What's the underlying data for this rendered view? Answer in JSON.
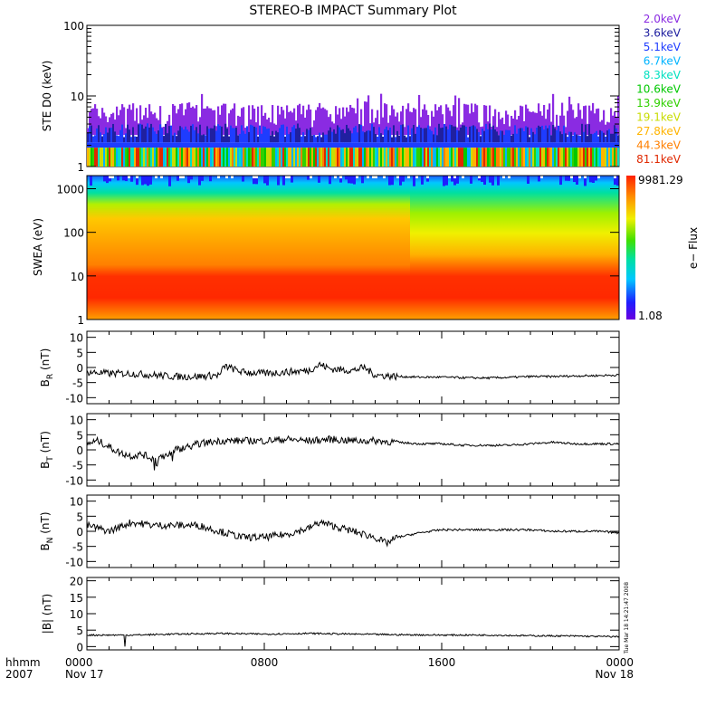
{
  "title": "STEREO-B IMPACT Summary Plot",
  "timestamp": "Tue Mar 18 14:21:47 2008",
  "x_axis": {
    "row1_label": "hhmm",
    "row2_label": "2007",
    "ticks": [
      {
        "t": 0,
        "top": "0000",
        "bottom": "Nov 17"
      },
      {
        "t": 8,
        "top": "0800",
        "bottom": ""
      },
      {
        "t": 16,
        "top": "1600",
        "bottom": ""
      },
      {
        "t": 24,
        "top": "0000",
        "bottom": "Nov 18"
      }
    ]
  },
  "chart_data": [
    {
      "id": "ste",
      "type": "bar",
      "ylabel": "STE D0 (keV)",
      "scale": "log",
      "ylim": [
        1,
        100
      ],
      "yticks": [
        1,
        10,
        100
      ],
      "x_range_hours": [
        0,
        24
      ],
      "channels": [
        {
          "name": "2.0keV",
          "color": "#8a2be2"
        },
        {
          "name": "3.6keV",
          "color": "#2020a0"
        },
        {
          "name": "5.1keV",
          "color": "#1e3cff"
        },
        {
          "name": "6.7keV",
          "color": "#00b4ff"
        },
        {
          "name": "8.3keV",
          "color": "#00e0c0"
        },
        {
          "name": "10.6keV",
          "color": "#00c800"
        },
        {
          "name": "13.9keV",
          "color": "#30d000"
        },
        {
          "name": "19.1keV",
          "color": "#c8dc00"
        },
        {
          "name": "27.8keV",
          "color": "#ffb400"
        },
        {
          "name": "44.3keV",
          "color": "#ff8000"
        },
        {
          "name": "81.1keV",
          "color": "#e02800"
        }
      ],
      "approx_levels_keV": {
        "2.0keV": 6,
        "3.6keV": 4,
        "5.1keV": 2.8,
        "6.7keV": 2.2,
        "8.3keV": 1.9,
        "10.6keV": 1.9,
        "13.9keV": 1.8,
        "19.1keV": 1.8,
        "27.8keV": 1.7,
        "44.3keV": 1.7,
        "81.1keV": 1.7
      }
    },
    {
      "id": "swea",
      "type": "heatmap",
      "ylabel": "SWEA (eV)",
      "scale": "log",
      "ylim": [
        1,
        2000
      ],
      "yticks": [
        1,
        10,
        100,
        1000
      ],
      "colorbar": {
        "label": "e− Flux",
        "max_label": "9981.29",
        "min_label": "1.08"
      },
      "x_range_hours": [
        0,
        24
      ]
    },
    {
      "id": "br",
      "type": "line",
      "ylabel_main": "B",
      "ylabel_sub": "R",
      "ylabel_unit": " (nT)",
      "ylim": [
        -12,
        12
      ],
      "yticks": [
        -10,
        -5,
        0,
        5,
        10
      ],
      "x_hours": [
        0,
        1,
        2,
        3,
        4,
        5,
        6,
        6.2,
        7,
        8,
        9,
        10,
        10.5,
        11,
        12,
        12.5,
        13,
        14,
        15,
        16,
        17,
        18,
        19,
        20,
        21,
        22,
        23,
        24
      ],
      "values": [
        -1.5,
        -2,
        -2,
        -2.5,
        -3,
        -3,
        -2.5,
        0.5,
        -1.5,
        -2,
        -1.5,
        -1,
        1,
        -0.5,
        -1,
        0,
        -2.5,
        -3,
        -3.2,
        -3.2,
        -3.4,
        -3.5,
        -3.3,
        -3,
        -3,
        -2.8,
        -2.7,
        -2.5
      ]
    },
    {
      "id": "bt",
      "type": "line",
      "ylabel_main": "B",
      "ylabel_sub": "T",
      "ylabel_unit": " (nT)",
      "ylim": [
        -12,
        12
      ],
      "yticks": [
        -10,
        -5,
        0,
        5,
        10
      ],
      "x_hours": [
        0,
        0.5,
        1,
        1.5,
        2,
        2.5,
        3,
        3.5,
        4,
        4.5,
        5,
        5.5,
        6,
        7,
        8,
        9,
        10,
        11,
        12,
        13,
        14,
        15,
        16,
        17,
        18,
        19,
        20,
        21,
        22,
        23,
        24
      ],
      "values": [
        2,
        3,
        1,
        -1,
        -2,
        -1.5,
        -3,
        -2,
        0,
        1,
        2,
        2.5,
        3,
        3,
        3,
        3.5,
        3,
        3.5,
        3,
        3,
        2.5,
        2,
        2,
        1.5,
        1.5,
        1.5,
        2,
        2.5,
        2,
        2,
        2
      ]
    },
    {
      "id": "bn",
      "type": "line",
      "ylabel_main": "B",
      "ylabel_sub": "N",
      "ylabel_unit": " (nT)",
      "ylim": [
        -12,
        12
      ],
      "yticks": [
        -10,
        -5,
        0,
        5,
        10
      ],
      "x_hours": [
        0,
        1,
        2,
        3,
        4,
        5,
        6,
        7,
        8,
        9,
        10,
        10.5,
        11,
        12,
        13,
        13.5,
        14,
        15,
        16,
        17,
        18,
        19,
        20,
        21,
        22,
        23,
        24
      ],
      "values": [
        2,
        0,
        3,
        2,
        2,
        2,
        0,
        -2,
        -2,
        -1,
        1,
        3,
        2,
        0,
        -2,
        -4,
        -2,
        -0.5,
        0.5,
        0.5,
        0.5,
        0.5,
        0.5,
        0,
        0,
        0,
        -0.5
      ]
    },
    {
      "id": "bmag",
      "type": "line",
      "ylabel_main": "|B|",
      "ylabel_sub": "",
      "ylabel_unit": " (nT)",
      "ylim": [
        -1,
        21
      ],
      "yticks": [
        0,
        5,
        10,
        15,
        20
      ],
      "x_hours": [
        0,
        2,
        4,
        6,
        8,
        10,
        12,
        14,
        16,
        18,
        20,
        22,
        24
      ],
      "values": [
        3.5,
        3.5,
        3.8,
        4,
        3.8,
        4,
        3.8,
        3.6,
        3.5,
        3.5,
        3.3,
        3.2,
        3
      ]
    }
  ]
}
